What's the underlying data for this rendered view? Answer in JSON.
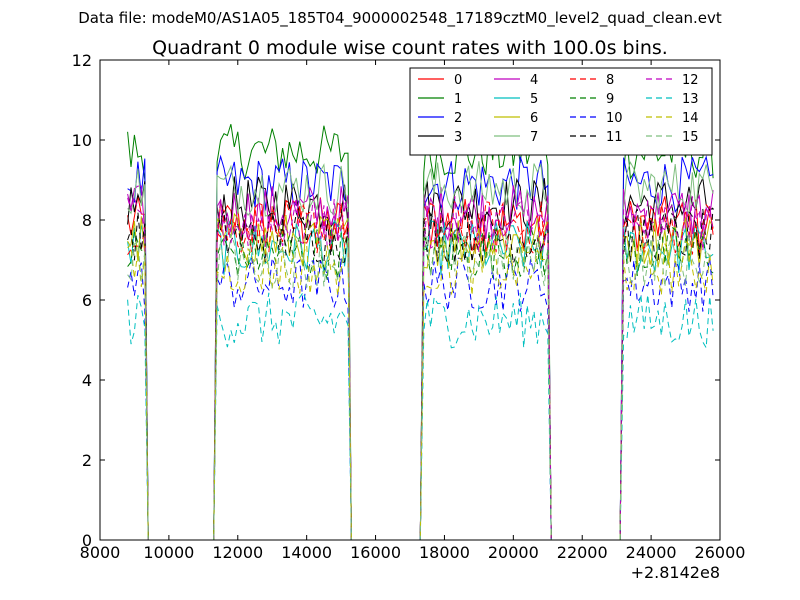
{
  "suptitle": "Data file: modeM0/AS1A05_185T04_9000002548_17189cztM0_level2_quad_clean.evt",
  "chart_data": {
    "type": "line",
    "title": "Quadrant 0 module wise count rates with 100.0s bins.",
    "xlabel": "",
    "ylabel": "",
    "x_offset_label": "+2.8142e8",
    "xlim": [
      8000,
      26000
    ],
    "ylim": [
      0,
      12
    ],
    "xticks": [
      8000,
      10000,
      12000,
      14000,
      16000,
      18000,
      20000,
      22000,
      24000,
      26000
    ],
    "yticks": [
      0,
      2,
      4,
      6,
      8,
      10,
      12
    ],
    "grid": false,
    "legend_position": "top-right",
    "legend_columns": 4,
    "on_segments": [
      {
        "start": 8800,
        "end": 9300
      },
      {
        "start": 11400,
        "end": 15200
      },
      {
        "start": 17400,
        "end": 21000
      },
      {
        "start": 23200,
        "end": 25800
      }
    ],
    "series": [
      {
        "name": "0",
        "color": "#ff0000",
        "style": "solid",
        "level": 7.9
      },
      {
        "name": "1",
        "color": "#008000",
        "style": "solid",
        "level": 9.7
      },
      {
        "name": "2",
        "color": "#0000ff",
        "style": "solid",
        "level": 8.9
      },
      {
        "name": "3",
        "color": "#000000",
        "style": "solid",
        "level": 8.4
      },
      {
        "name": "4",
        "color": "#bf00bf",
        "style": "solid",
        "level": 8.2
      },
      {
        "name": "5",
        "color": "#00bfbf",
        "style": "solid",
        "level": 7.3
      },
      {
        "name": "6",
        "color": "#bfbf00",
        "style": "solid",
        "level": 7.5
      },
      {
        "name": "7",
        "color": "#7fbf7f",
        "style": "solid",
        "level": 8.8
      },
      {
        "name": "8",
        "color": "#ff0000",
        "style": "dashed",
        "level": 7.8
      },
      {
        "name": "9",
        "color": "#008000",
        "style": "dashed",
        "level": 7.2
      },
      {
        "name": "10",
        "color": "#0000ff",
        "style": "dashed",
        "level": 6.4
      },
      {
        "name": "11",
        "color": "#000000",
        "style": "dashed",
        "level": 7.6
      },
      {
        "name": "12",
        "color": "#bf00bf",
        "style": "dashed",
        "level": 7.9
      },
      {
        "name": "13",
        "color": "#00bfbf",
        "style": "dashed",
        "level": 5.5
      },
      {
        "name": "14",
        "color": "#bfbf00",
        "style": "dashed",
        "level": 6.8
      },
      {
        "name": "15",
        "color": "#7fbf7f",
        "style": "dashed",
        "level": 7.0
      }
    ]
  }
}
